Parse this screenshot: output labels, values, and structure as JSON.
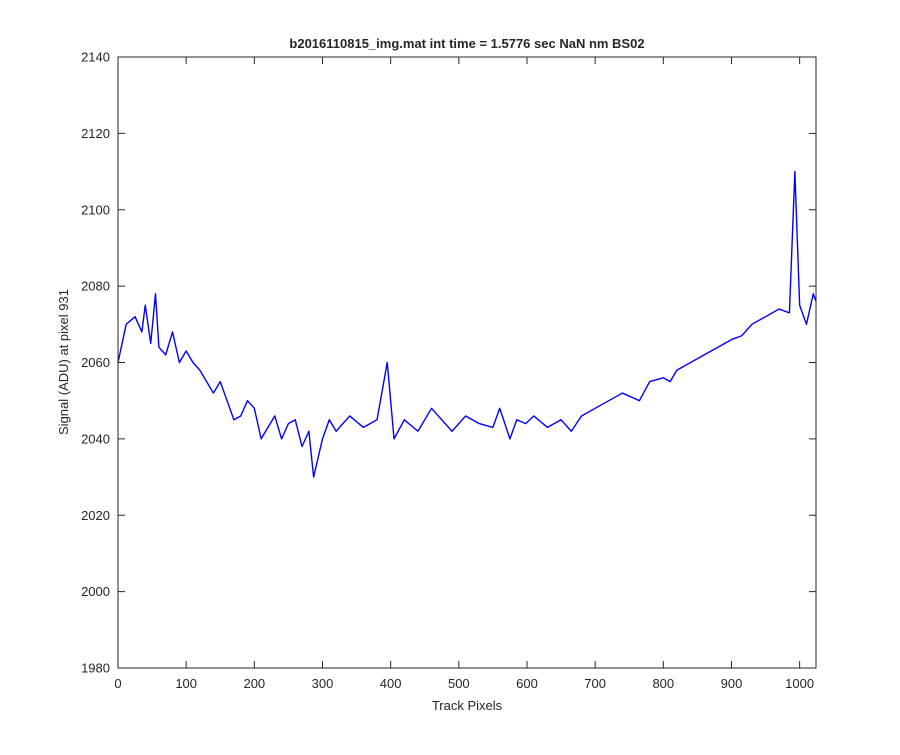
{
  "chart_data": {
    "type": "line",
    "title": "b2016110815_img.mat int time = 1.5776 sec  NaN nm BS02",
    "xlabel": "Track Pixels",
    "ylabel": "Signal (ADU) at pixel 931",
    "xlim": [
      0,
      1024
    ],
    "ylim": [
      1980,
      2140
    ],
    "xticks": [
      0,
      100,
      200,
      300,
      400,
      500,
      600,
      700,
      800,
      900,
      1000
    ],
    "yticks": [
      1980,
      2000,
      2020,
      2040,
      2060,
      2080,
      2100,
      2120,
      2140
    ],
    "grid": false,
    "line_color": "#0000ff",
    "series": [
      {
        "x": [
          0,
          12,
          25,
          35,
          40,
          48,
          55,
          60,
          70,
          80,
          90,
          100,
          110,
          120,
          130,
          140,
          150,
          160,
          170,
          180,
          190,
          200,
          210,
          220,
          230,
          240,
          250,
          260,
          270,
          280,
          287,
          300,
          310,
          320,
          340,
          360,
          380,
          395,
          405,
          420,
          440,
          460,
          475,
          490,
          510,
          530,
          550,
          560,
          575,
          585,
          598,
          610,
          630,
          650,
          665,
          680,
          700,
          720,
          740,
          765,
          780,
          800,
          810,
          820,
          840,
          860,
          880,
          900,
          915,
          930,
          950,
          970,
          985,
          993,
          1000,
          1010,
          1020,
          1024
        ],
        "y": [
          2060,
          2070,
          2072,
          2068,
          2075,
          2065,
          2078,
          2064,
          2062,
          2068,
          2060,
          2063,
          2060,
          2058,
          2055,
          2052,
          2055,
          2050,
          2045,
          2046,
          2050,
          2048,
          2040,
          2043,
          2046,
          2040,
          2044,
          2045,
          2038,
          2042,
          2030,
          2040,
          2045,
          2042,
          2046,
          2043,
          2045,
          2060,
          2040,
          2045,
          2042,
          2048,
          2045,
          2042,
          2046,
          2044,
          2043,
          2048,
          2040,
          2045,
          2044,
          2046,
          2043,
          2045,
          2042,
          2046,
          2048,
          2050,
          2052,
          2050,
          2055,
          2056,
          2055,
          2058,
          2060,
          2062,
          2064,
          2066,
          2067,
          2070,
          2072,
          2074,
          2073,
          2110,
          2075,
          2070,
          2078,
          2076
        ]
      }
    ]
  }
}
